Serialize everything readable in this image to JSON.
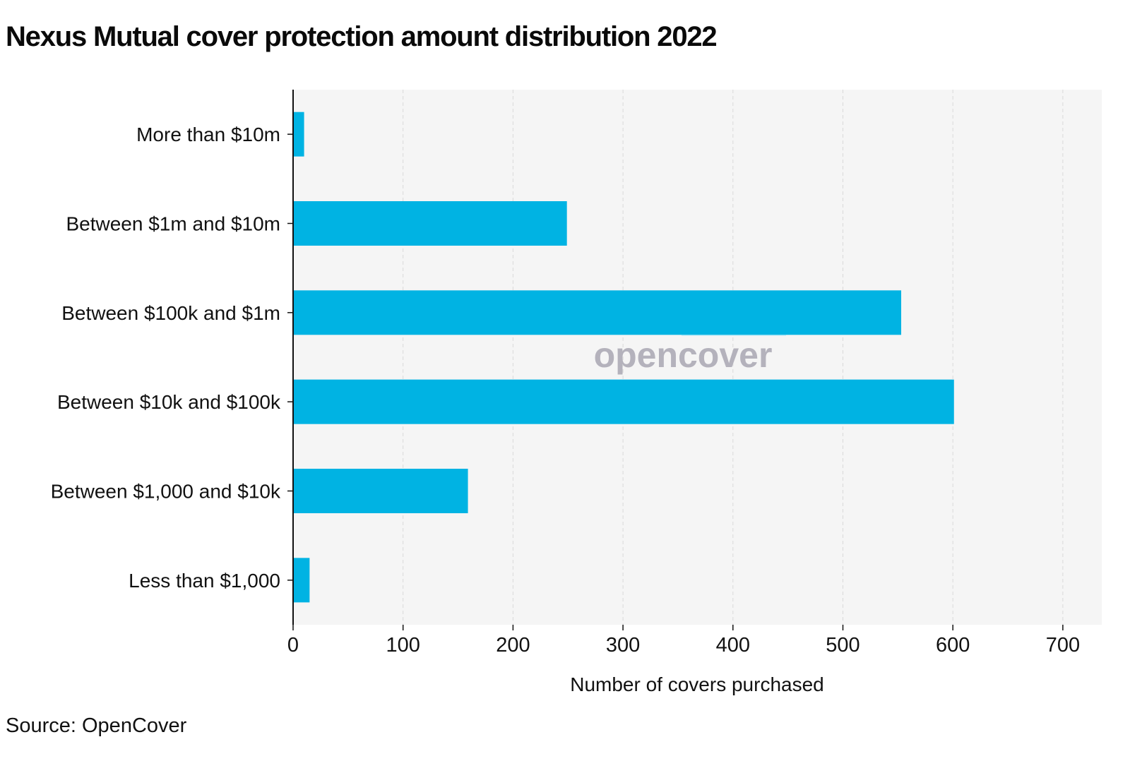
{
  "title": "Nexus Mutual cover protection amount distribution 2022",
  "source": "Source: OpenCover",
  "watermark": "opencover",
  "colors": {
    "bar": "#00b3e3",
    "plot_background": "#f5f5f5",
    "gridline": "#d9d9d9",
    "axis": "#111111",
    "watermark_text": "#b4b2bc",
    "watermark_accent": "#cdeef8"
  },
  "chart_data": {
    "type": "bar",
    "orientation": "horizontal",
    "categories": [
      "More than $10m",
      "Between $1m and $10m",
      "Between $100k and $1m",
      "Between $10k and $100k",
      "Between $1,000 and $10k",
      "Less than $1,000"
    ],
    "values": [
      10,
      249,
      553,
      601,
      159,
      15
    ],
    "xlabel": "Number of covers purchased",
    "ylabel": "",
    "xlim": [
      0,
      735
    ],
    "xticks": [
      0,
      100,
      200,
      300,
      400,
      500,
      600,
      700
    ],
    "grid": "vertical dashed",
    "legend": "none"
  }
}
